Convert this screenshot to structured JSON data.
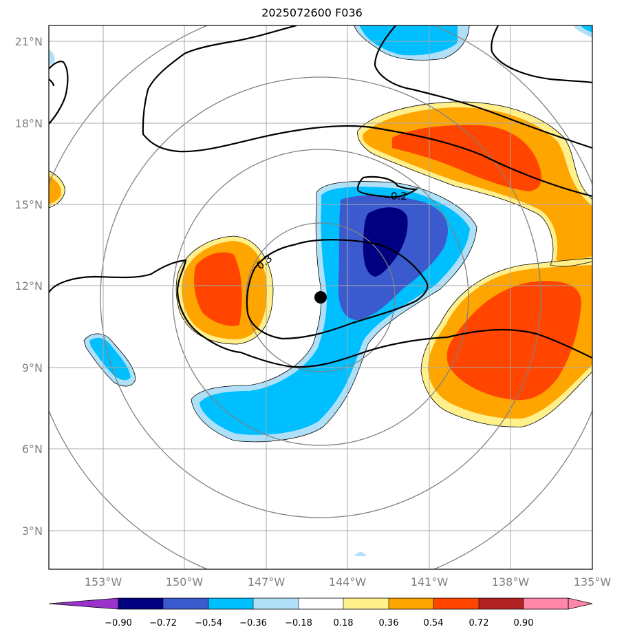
{
  "title": "2025072600 F036",
  "map": {
    "lat_ticks": [
      "21°N",
      "18°N",
      "15°N",
      "12°N",
      "9°N",
      "6°N",
      "3°N"
    ],
    "lon_ticks": [
      "153°W",
      "150°W",
      "147°W",
      "144°W",
      "141°W",
      "138°W",
      "135°W"
    ],
    "extent": {
      "lon_min": -155,
      "lon_max": -135,
      "lat_min": 1.6,
      "lat_max": 21.6
    },
    "storm_center": {
      "lon": -145.0,
      "lat": 11.6
    },
    "range_rings": "concentric circles around storm center",
    "contour_labels": [
      "0.2",
      "0.3"
    ],
    "fill_colors": {
      "lt_-0.90": "#9933cc",
      "-0.90_-0.72": "#000080",
      "-0.72_-0.54": "#3a5acd",
      "-0.54_-0.36": "#00bfff",
      "-0.36_-0.18": "#b0e0f8",
      "-0.18_0.18": "#ffffff",
      "0.18_0.36": "#fff08c",
      "0.36_0.54": "#ffa500",
      "0.54_0.72": "#ff4500",
      "0.72_0.90": "#b22222",
      "gt_0.90": "#ff88aa"
    }
  },
  "colorbar": {
    "labels": [
      "−0.90",
      "−0.72",
      "−0.54",
      "−0.36",
      "−0.18",
      "0.18",
      "0.36",
      "0.54",
      "0.72",
      "0.90"
    ],
    "colors": [
      "#9933cc",
      "#000080",
      "#3a5acd",
      "#00bfff",
      "#b0e0f8",
      "#ffffff",
      "#fff08c",
      "#ffa500",
      "#ff4500",
      "#b22222",
      "#ff88aa"
    ]
  }
}
